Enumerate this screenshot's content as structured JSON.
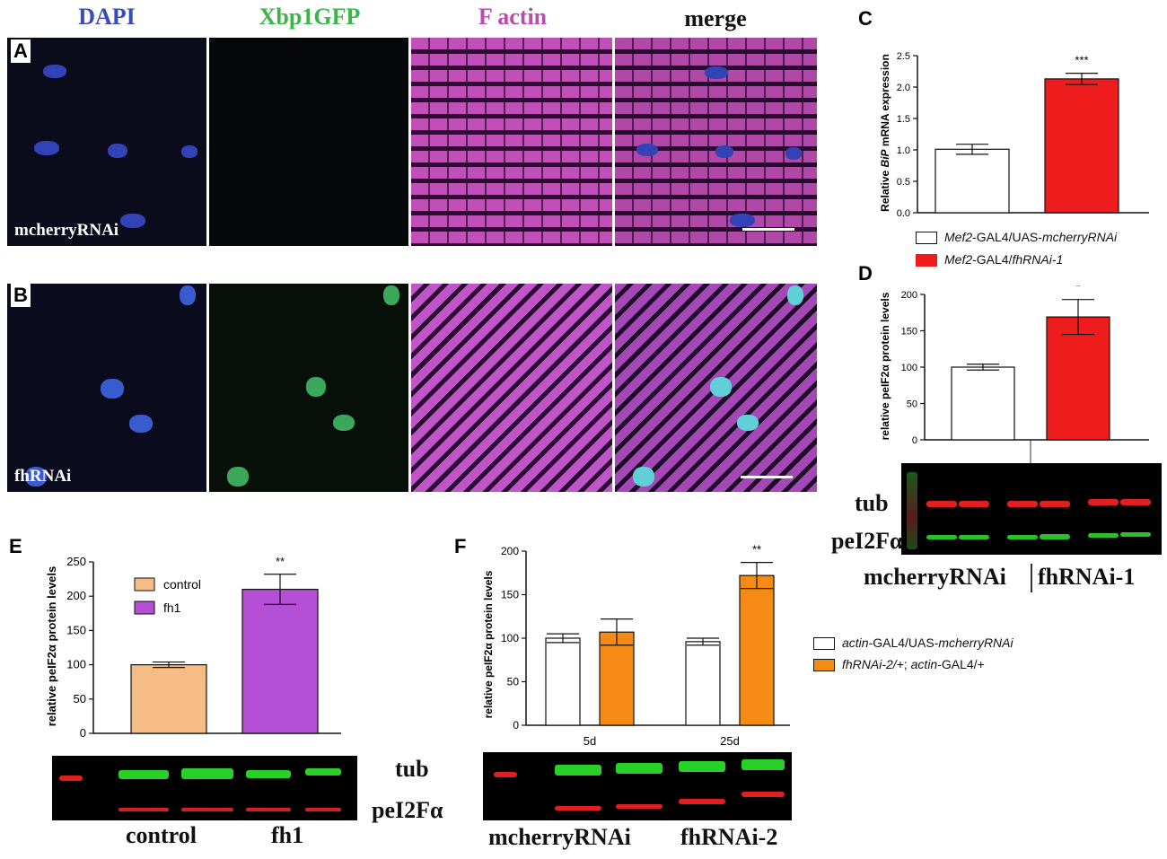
{
  "columns": [
    "DAPI",
    "Xbp1GFP",
    "F actin",
    "merge"
  ],
  "column_colors": [
    "#3a4cb8",
    "#39b54a",
    "#b84cb3",
    "#111111"
  ],
  "panels": {
    "A": "A",
    "B": "B",
    "C": "C",
    "D": "D",
    "E": "E",
    "F": "F"
  },
  "micro_labels": {
    "A": "mcherryRNAi",
    "B": "fhRNAi"
  },
  "colors": {
    "red": "#ee1c1c",
    "purple": "#b44fd6",
    "peach": "#f5bd85",
    "orange": "#f58a15",
    "white": "#ffffff"
  },
  "chart_data": [
    {
      "panel": "C",
      "type": "bar",
      "ylabel_pre": "Relative ",
      "ylabel_ital": "BiP",
      "ylabel_post": " mRNA expression",
      "ylim": [
        0,
        2.5
      ],
      "ticks": [
        "0.0",
        "0.5",
        "1.0",
        "1.5",
        "2.0",
        "2.5"
      ],
      "values": [
        1.01,
        2.13
      ],
      "errors": [
        0.08,
        0.09
      ],
      "significance": "***",
      "legend": [
        {
          "ital1": "Mef2",
          "plain": "-GAL4/UAS-",
          "ital2": "mcherryRNAi",
          "fill": "#ffffff"
        },
        {
          "ital1": "Mef2",
          "plain": "-GAL4/",
          "ital2": "fhRNAi-1",
          "fill": "#ee1c1c"
        }
      ]
    },
    {
      "panel": "D",
      "type": "bar",
      "ylabel": "relative peIF2α protein levels",
      "ylim": [
        0,
        200
      ],
      "ticks": [
        "0",
        "50",
        "100",
        "150",
        "200"
      ],
      "values": [
        100,
        169
      ],
      "errors": [
        4,
        24
      ],
      "significance": "*"
    },
    {
      "panel": "E",
      "type": "bar",
      "ylabel": "relative peIF2α protein levels",
      "ylim": [
        0,
        250
      ],
      "ticks": [
        "0",
        "50",
        "100",
        "150",
        "200",
        "250"
      ],
      "categories": [
        "control",
        "fh1"
      ],
      "values": [
        100,
        210
      ],
      "errors": [
        4,
        22
      ],
      "significance": "**",
      "legend": [
        "control",
        "fh1"
      ]
    },
    {
      "panel": "F",
      "type": "bar",
      "ylabel": "relative peIF2α protein levels",
      "ylim": [
        0,
        200
      ],
      "ticks": [
        "0",
        "50",
        "100",
        "150",
        "200"
      ],
      "categories": [
        "5d",
        "25d"
      ],
      "series": [
        {
          "name": "actin-GAL4/UAS-mcherryRNAi",
          "values": [
            100,
            96
          ],
          "errors": [
            5,
            4
          ]
        },
        {
          "name": "fhRNAi-2/+; actin-GAL4/+",
          "values": [
            107,
            172
          ],
          "errors": [
            15,
            15
          ]
        }
      ],
      "significance": "**",
      "legend": [
        {
          "ital1": "actin",
          "plain": "-GAL4/UAS-",
          "ital2": "mcherryRNAi",
          "fill": "#ffffff"
        },
        {
          "ital1": "fhRNAi-2/+",
          "plain": "; ",
          "ital2": "actin",
          "tail": "-GAL4/+",
          "fill": "#f58a15"
        }
      ]
    }
  ],
  "blots": {
    "D": {
      "tub": "tub",
      "pe": "peI2Fα",
      "lane1": "mcherryRNAi",
      "lane2": "fhRNAi-1"
    },
    "E": {
      "tub": "tub",
      "pe": "peI2Fα",
      "lane1": "control",
      "lane2": "fh1"
    },
    "F": {
      "lane1": "mcherryRNAi",
      "lane2": "fhRNAi-2"
    }
  }
}
